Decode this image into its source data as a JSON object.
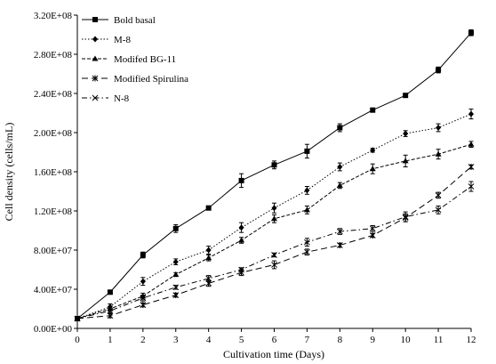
{
  "chart_data": {
    "type": "line",
    "title": "",
    "xlabel": "Cultivation time (Days)",
    "ylabel": "Cell density (cells/mL)",
    "xlim": [
      0,
      12
    ],
    "ylim": [
      0,
      320000000
    ],
    "x": [
      0,
      1,
      2,
      3,
      4,
      5,
      6,
      7,
      8,
      9,
      10,
      11,
      12
    ],
    "x_tick_labels": [
      "0",
      "1",
      "2",
      "3",
      "4",
      "5",
      "6",
      "7",
      "8",
      "9",
      "10",
      "11",
      "12"
    ],
    "y_ticks": [
      0,
      40000000,
      80000000,
      120000000,
      160000000,
      200000000,
      240000000,
      280000000,
      320000000
    ],
    "y_tick_labels": [
      "0.00E+00",
      "4.00E+07",
      "8.00E+07",
      "1.20E+08",
      "1.60E+08",
      "2.00E+08",
      "2.40E+08",
      "2.80E+08",
      "3.20E+08"
    ],
    "grid": false,
    "legend_position": "top-left",
    "series": [
      {
        "name": "Bold basal",
        "marker": "square",
        "dash": "solid",
        "values": [
          10000000,
          37000000,
          75000000,
          102000000,
          123000000,
          151000000,
          167000000,
          181000000,
          205000000,
          223000000,
          238000000,
          264000000,
          302000000
        ],
        "errors": [
          1000000,
          2000000,
          3000000,
          4000000,
          2000000,
          7000000,
          4000000,
          7000000,
          4000000,
          2000000,
          2000000,
          3000000,
          3000000
        ]
      },
      {
        "name": "M-8",
        "marker": "diamond",
        "dash": "dotted",
        "values": [
          10000000,
          22000000,
          48000000,
          68000000,
          80000000,
          103000000,
          123000000,
          141000000,
          165000000,
          182000000,
          199000000,
          205000000,
          219000000
        ],
        "errors": [
          1000000,
          3000000,
          4000000,
          3000000,
          4000000,
          5000000,
          5000000,
          4000000,
          4000000,
          2000000,
          3000000,
          4000000,
          5000000
        ]
      },
      {
        "name": "Modifed BG-11",
        "marker": "triangle",
        "dash": "short-dash",
        "values": [
          10000000,
          20000000,
          33000000,
          55000000,
          72000000,
          90000000,
          112000000,
          121000000,
          146000000,
          163000000,
          171000000,
          178000000,
          188000000
        ],
        "errors": [
          1000000,
          2000000,
          3000000,
          2000000,
          3000000,
          3000000,
          4000000,
          4000000,
          3000000,
          5000000,
          6000000,
          5000000,
          3000000
        ]
      },
      {
        "name": "Modified Spirulina",
        "marker": "star",
        "dash": "long-dash",
        "values": [
          10000000,
          13000000,
          24000000,
          34000000,
          46000000,
          57000000,
          65000000,
          78000000,
          85000000,
          95000000,
          113000000,
          136000000,
          165000000
        ],
        "errors": [
          1000000,
          2000000,
          2000000,
          2000000,
          3000000,
          3000000,
          4000000,
          3000000,
          2000000,
          2000000,
          4000000,
          3000000,
          2000000
        ]
      },
      {
        "name": "N-8",
        "marker": "x",
        "dash": "dash-dot",
        "values": [
          10000000,
          18000000,
          31000000,
          42000000,
          51000000,
          60000000,
          75000000,
          88000000,
          99000000,
          102000000,
          114000000,
          121000000,
          145000000
        ],
        "errors": [
          1000000,
          2000000,
          3000000,
          2000000,
          3000000,
          2000000,
          2000000,
          4000000,
          3000000,
          3000000,
          5000000,
          4000000,
          5000000
        ]
      }
    ]
  }
}
